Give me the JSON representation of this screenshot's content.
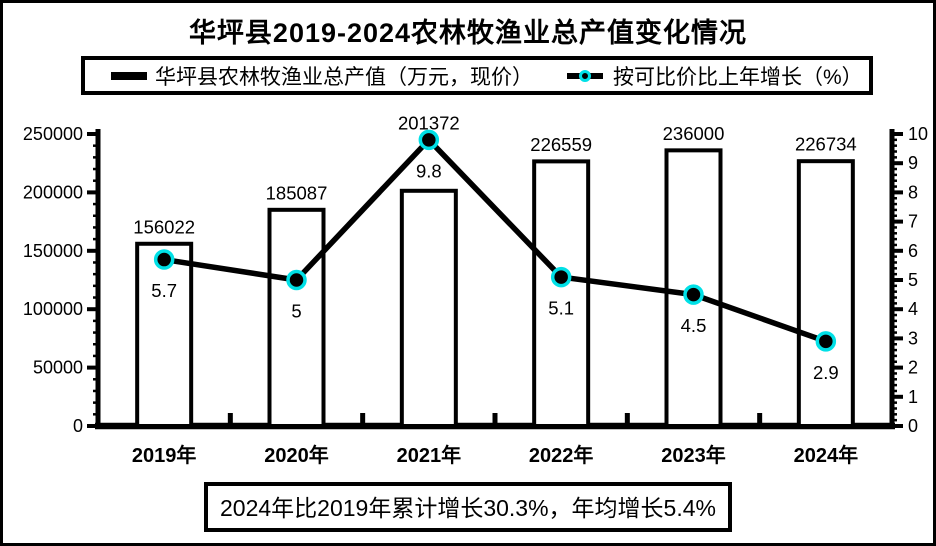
{
  "title": "华坪县2019-2024农林牧渔业总产值变化情况",
  "legend": {
    "bar_label": "华坪县农林牧渔业总产值（万元，现价）",
    "line_label": "按可比价比上年增长（%）"
  },
  "footer": {
    "text": "2024年比2019年累计增长30.3%，年均增长5.4%"
  },
  "colors": {
    "ink": "#000000",
    "background": "#FFFFFF",
    "bar_fill": "#FFFFFF",
    "marker_fill": "#000000",
    "marker_ring": "#00E0E6"
  },
  "chart_data": {
    "type": "bar",
    "subtype": "bar-line-combo",
    "categories": [
      "2019年",
      "2020年",
      "2021年",
      "2022年",
      "2023年",
      "2024年"
    ],
    "series": [
      {
        "name": "华坪县农林牧渔业总产值（万元，现价）",
        "type": "bar",
        "axis": "left",
        "values": [
          156022,
          185087,
          201372,
          226559,
          236000,
          226734
        ],
        "value_labels": [
          "156022",
          "185087",
          "201372",
          "226559",
          "236000",
          "226734"
        ]
      },
      {
        "name": "按可比价比上年增长（%）",
        "type": "line",
        "axis": "right",
        "values": [
          5.7,
          5,
          9.8,
          5.1,
          4.5,
          2.9
        ],
        "value_labels": [
          "5.7",
          "5",
          "9.8",
          "5.1",
          "4.5",
          "2.9"
        ]
      }
    ],
    "left_axis": {
      "min": 0,
      "max": 250000,
      "major_step": 50000,
      "minor_step": 10000,
      "tick_labels": [
        "0",
        "50000",
        "100000",
        "150000",
        "200000",
        "250000"
      ]
    },
    "right_axis": {
      "min": 0,
      "max": 10,
      "major_step": 1,
      "minor_step": 0.2,
      "tick_labels": [
        "0",
        "1",
        "2",
        "3",
        "4",
        "5",
        "6",
        "7",
        "8",
        "9",
        "10"
      ]
    },
    "grid": "off",
    "legend_position": "top"
  }
}
